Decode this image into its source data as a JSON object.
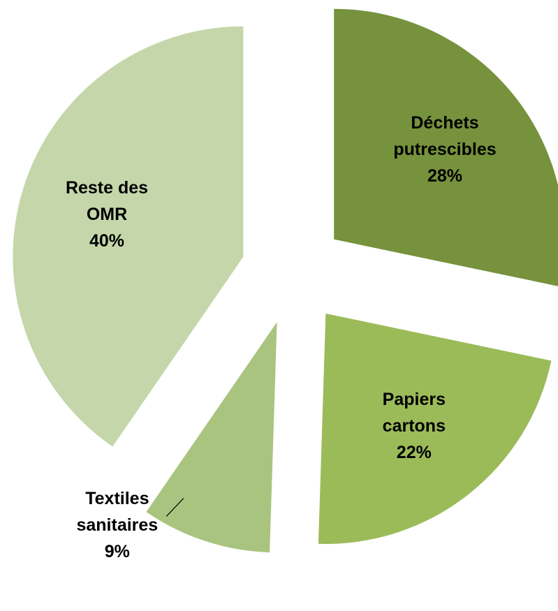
{
  "chart_data": {
    "type": "pie",
    "categories": [
      "Déchets\nputrescibles",
      "Papiers\ncartons",
      "Textiles\nsanitaires",
      "Reste des\nOMR"
    ],
    "values": [
      28,
      22,
      9,
      40
    ],
    "value_labels": [
      "28%",
      "22%",
      "9%",
      "40%"
    ],
    "colors": [
      "#76923c",
      "#9bbb59",
      "#a9c47f",
      "#c5d7aa"
    ]
  }
}
